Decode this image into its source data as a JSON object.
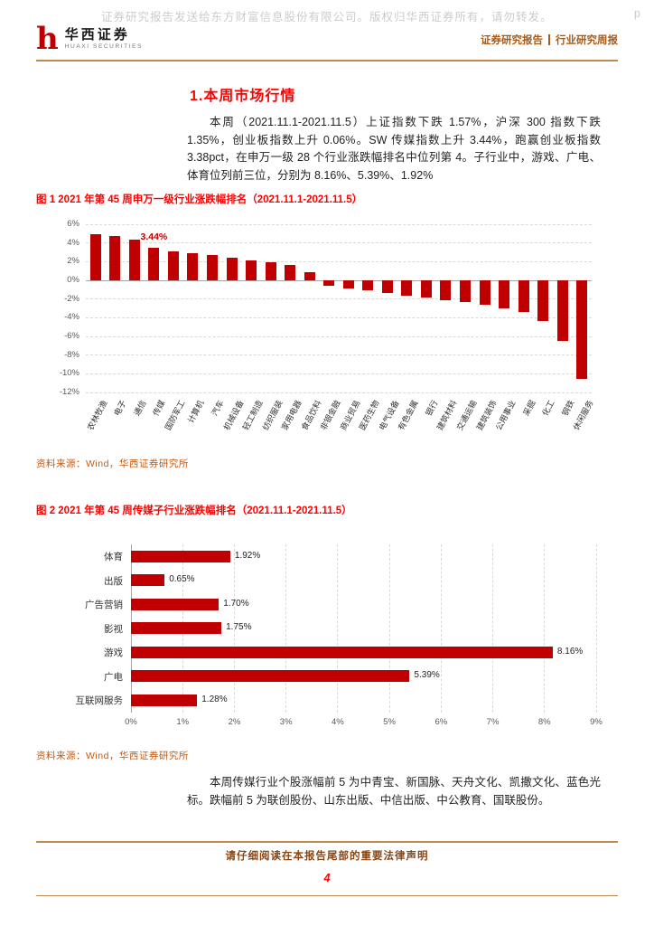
{
  "watermark": {
    "text": "证券研究报告发送给东方财富信息股份有限公司。版权归华西证券所有，请勿转发。",
    "right": "p"
  },
  "header": {
    "logo_mark": "h",
    "logo_cn": "华西证券",
    "logo_en": "HUAXI SECURITIES",
    "report_type": "证券研究报告",
    "report_series": "行业研究周报"
  },
  "section": {
    "title": "1.本周市场行情"
  },
  "paragraphs": {
    "p1": "本周（2021.11.1-2021.11.5）上证指数下跌 1.57%，沪深 300 指数下跌 1.35%，创业板指数上升 0.06%。SW 传媒指数上升 3.44%，跑赢创业板指数 3.38pct，在申万一级 28 个行业涨跌幅排名中位列第 4。子行业中，游戏、广电、体育位列前三位，分别为 8.16%、5.39%、1.92%",
    "p2": "本周传媒行业个股涨幅前 5 为中青宝、新国脉、天舟文化、凯撒文化、蓝色光标。跌幅前 5 为联创股份、山东出版、中信出版、中公教育、国联股份。"
  },
  "figure1": {
    "caption": "图 1 2021 年第 45 周申万一级行业涨跌幅排名（2021.11.1-2021.11.5）",
    "source": "资料来源：Wind，华西证券研究所"
  },
  "figure2": {
    "caption": "图 2 2021 年第 45 周传媒子行业涨跌幅排名（2021.11.1-2021.11.5）",
    "source": "资料来源：Wind，华西证券研究所"
  },
  "footer": {
    "legal": "请仔细阅读在本报告尾部的重要法律声明",
    "page": "4"
  },
  "colors": {
    "bar": "#C00000",
    "accent_orange": "#C55A11",
    "caption_red": "#FF0000",
    "grid": "#d9d9d9",
    "axis": "#a6a6a6",
    "tick_text": "#595959"
  },
  "chart_data": [
    {
      "type": "bar",
      "title": "",
      "categories": [
        "农林牧渔",
        "电子",
        "通信",
        "传媒",
        "国防军工",
        "计算机",
        "汽车",
        "机械设备",
        "轻工制造",
        "纺织服装",
        "家用电器",
        "食品饮料",
        "非银金融",
        "商业贸易",
        "医药生物",
        "电气设备",
        "有色金属",
        "银行",
        "建筑材料",
        "交通运输",
        "建筑装饰",
        "公用事业",
        "采掘",
        "化工",
        "钢铁",
        "休闲服务"
      ],
      "values": [
        4.9,
        4.7,
        4.4,
        3.44,
        3.1,
        2.9,
        2.7,
        2.4,
        2.1,
        1.9,
        1.6,
        0.9,
        -0.6,
        -0.9,
        -1.1,
        -1.4,
        -1.6,
        -1.8,
        -2.1,
        -2.3,
        -2.6,
        -3.0,
        -3.4,
        -4.4,
        -6.5,
        -10.5
      ],
      "ylim": [
        -12,
        6
      ],
      "yticks": [
        6,
        4,
        2,
        0,
        -2,
        -4,
        -6,
        -8,
        -10,
        -12
      ],
      "ytick_labels": [
        "6%",
        "4%",
        "2%",
        "0%",
        "-2%",
        "-4%",
        "-6%",
        "-8%",
        "-10%",
        "-12%"
      ],
      "annotation": {
        "text": "3.44%",
        "category": "传媒"
      },
      "grid": true,
      "legend": "none"
    },
    {
      "type": "horizontal-bar",
      "title": "",
      "categories": [
        "体育",
        "出版",
        "广告营销",
        "影视",
        "游戏",
        "广电",
        "互联网服务"
      ],
      "values": [
        1.92,
        0.65,
        1.7,
        1.75,
        8.16,
        5.39,
        1.28
      ],
      "value_labels": [
        "1.92%",
        "0.65%",
        "1.70%",
        "1.75%",
        "8.16%",
        "5.39%",
        "1.28%"
      ],
      "xlim": [
        0,
        9
      ],
      "xticks": [
        0,
        1,
        2,
        3,
        4,
        5,
        6,
        7,
        8,
        9
      ],
      "xtick_labels": [
        "0%",
        "1%",
        "2%",
        "3%",
        "4%",
        "5%",
        "6%",
        "7%",
        "8%",
        "9%"
      ],
      "grid": true,
      "legend": "none"
    }
  ]
}
